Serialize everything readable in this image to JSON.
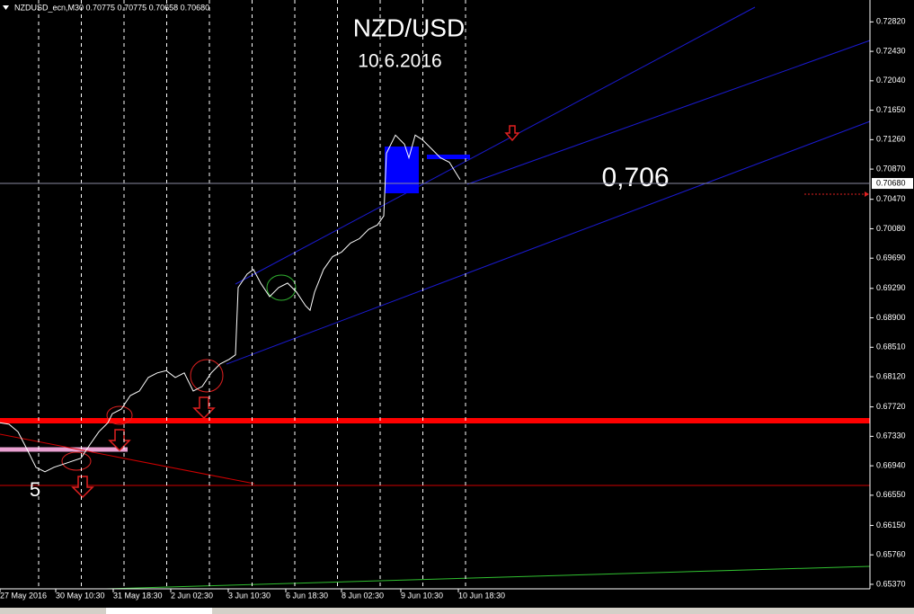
{
  "chart_data": {
    "type": "line",
    "header": "NZDUSD_ecn,M30  0.70775 0.70775 0.70658 0.70680",
    "title": "NZD/USD",
    "subtitle": "10.6.2016",
    "annotations": [
      "0,706",
      "5"
    ],
    "color": "#ffffff",
    "x": [
      0,
      5,
      10,
      15,
      20,
      25,
      30,
      37.5,
      45,
      50,
      55,
      60,
      62.5,
      67.5,
      72.5,
      77.5,
      82.5,
      87.5,
      92.5,
      97.5,
      102.5,
      107.5,
      112.5,
      117.5,
      122.5,
      127.5,
      131,
      132.5,
      137.5,
      141,
      145,
      150,
      155,
      160,
      165,
      170,
      172.5,
      175,
      180,
      185,
      190,
      195,
      200,
      205,
      210,
      213.5,
      215,
      220,
      225,
      227.5,
      231,
      235,
      240,
      245,
      250,
      256
    ],
    "values": [
      0.6751,
      0.6749,
      0.6739,
      0.6716,
      0.6692,
      0.6686,
      0.6692,
      0.6698,
      0.6704,
      0.6722,
      0.6739,
      0.6751,
      0.6763,
      0.6769,
      0.6787,
      0.6793,
      0.6811,
      0.6817,
      0.682,
      0.6811,
      0.6817,
      0.6793,
      0.6799,
      0.6817,
      0.6829,
      0.6835,
      0.6841,
      0.693,
      0.6948,
      0.6954,
      0.6936,
      0.6918,
      0.693,
      0.6936,
      0.6924,
      0.6906,
      0.69,
      0.6924,
      0.6954,
      0.6971,
      0.6977,
      0.6989,
      0.6995,
      0.7007,
      0.7013,
      0.7025,
      0.7108,
      0.7132,
      0.712,
      0.7102,
      0.7132,
      0.7126,
      0.7114,
      0.7102,
      0.7096,
      0.7073
    ],
    "current_price": {
      "value": 0.7068,
      "label": "0.70680"
    },
    "xlim": [
      0,
      484
    ],
    "xticks": [
      {
        "value": 0,
        "label": "27 May 2016"
      },
      {
        "value": 31,
        "label": "30 May 10:30"
      },
      {
        "value": 63,
        "label": "31 May 18:30"
      },
      {
        "value": 95,
        "label": "2 Jun 02:30"
      },
      {
        "value": 127,
        "label": "3 Jun 10:30"
      },
      {
        "value": 159,
        "label": "6 Jun 18:30"
      },
      {
        "value": 190,
        "label": "8 Jun 02:30"
      },
      {
        "value": 223,
        "label": "9 Jun 10:30"
      },
      {
        "value": 255,
        "label": "10 Jun 18:30"
      }
    ],
    "ylim": [
      0.6531,
      0.7311
    ],
    "yticks": [
      {
        "value": 0.7282,
        "label": "0.72820"
      },
      {
        "value": 0.7243,
        "label": "0.72430"
      },
      {
        "value": 0.7204,
        "label": "0.72040"
      },
      {
        "value": 0.7165,
        "label": "0.71650"
      },
      {
        "value": 0.7126,
        "label": "0.71260"
      },
      {
        "value": 0.7087,
        "label": "0.70870"
      },
      {
        "value": 0.7047,
        "label": "0.70470"
      },
      {
        "value": 0.7008,
        "label": "0.70080"
      },
      {
        "value": 0.6969,
        "label": "0.69690"
      },
      {
        "value": 0.6929,
        "label": "0.69290"
      },
      {
        "value": 0.689,
        "label": "0.68900"
      },
      {
        "value": 0.6851,
        "label": "0.68510"
      },
      {
        "value": 0.6812,
        "label": "0.68120"
      },
      {
        "value": 0.6772,
        "label": "0.67720"
      },
      {
        "value": 0.6733,
        "label": "0.67330"
      },
      {
        "value": 0.6694,
        "label": "0.66940"
      },
      {
        "value": 0.6655,
        "label": "0.66550"
      },
      {
        "value": 0.6615,
        "label": "0.66150"
      },
      {
        "value": 0.6576,
        "label": "0.65760"
      },
      {
        "value": 0.6537,
        "label": "0.65370"
      }
    ]
  }
}
